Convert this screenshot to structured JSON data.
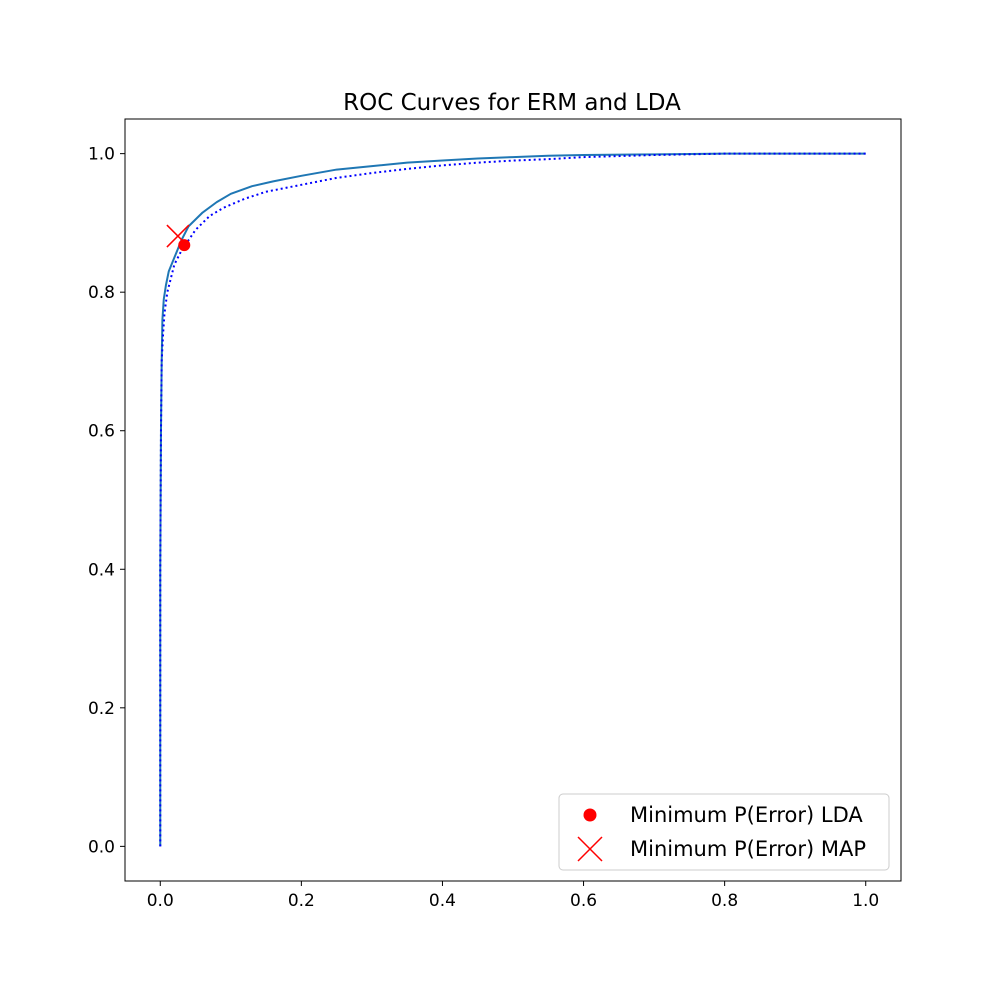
{
  "chart_data": {
    "type": "line",
    "title": "ROC Curves for ERM and LDA",
    "xlabel": "",
    "ylabel": "",
    "xlim": [
      -0.05,
      1.05
    ],
    "ylim": [
      -0.05,
      1.05
    ],
    "xticks": [
      0.0,
      0.2,
      0.4,
      0.6,
      0.8,
      1.0
    ],
    "xtick_labels": [
      "0.0",
      "0.2",
      "0.4",
      "0.6",
      "0.8",
      "1.0"
    ],
    "yticks": [
      0.0,
      0.2,
      0.4,
      0.6,
      0.8,
      1.0
    ],
    "ytick_labels": [
      "0.0",
      "0.2",
      "0.4",
      "0.6",
      "0.8",
      "1.0"
    ],
    "grid": false,
    "legend_position": "lower-right",
    "series": [
      {
        "style": "solid",
        "color": "#1f77b4",
        "x": [
          0.0,
          0.0,
          0.001,
          0.002,
          0.003,
          0.005,
          0.008,
          0.012,
          0.02,
          0.03,
          0.04,
          0.06,
          0.08,
          0.1,
          0.13,
          0.16,
          0.2,
          0.25,
          0.3,
          0.35,
          0.4,
          0.45,
          0.5,
          0.55,
          0.6,
          0.7,
          0.8,
          0.9,
          1.0
        ],
        "y": [
          0.0,
          0.4,
          0.6,
          0.7,
          0.76,
          0.79,
          0.81,
          0.83,
          0.85,
          0.875,
          0.895,
          0.915,
          0.93,
          0.942,
          0.953,
          0.96,
          0.968,
          0.977,
          0.982,
          0.987,
          0.99,
          0.993,
          0.995,
          0.997,
          0.998,
          0.999,
          1.0,
          1.0,
          1.0
        ]
      },
      {
        "style": "dotted",
        "color": "#0000ff",
        "x": [
          0.0,
          0.0,
          0.001,
          0.002,
          0.004,
          0.006,
          0.01,
          0.015,
          0.02,
          0.03,
          0.04,
          0.05,
          0.07,
          0.09,
          0.12,
          0.15,
          0.2,
          0.25,
          0.3,
          0.35,
          0.4,
          0.45,
          0.5,
          0.55,
          0.6,
          0.7,
          0.8,
          0.9,
          1.0
        ],
        "y": [
          0.0,
          0.4,
          0.6,
          0.7,
          0.74,
          0.77,
          0.8,
          0.82,
          0.84,
          0.86,
          0.875,
          0.89,
          0.91,
          0.922,
          0.935,
          0.945,
          0.955,
          0.965,
          0.972,
          0.978,
          0.983,
          0.987,
          0.99,
          0.992,
          0.995,
          0.998,
          1.0,
          1.0,
          1.0
        ]
      }
    ],
    "markers": [
      {
        "name": "Minimum P(Error) LDA",
        "shape": "circle",
        "color": "#ff0000",
        "x": 0.034,
        "y": 0.868
      },
      {
        "name": "Minimum P(Error) MAP",
        "shape": "x",
        "color": "#ff0000",
        "x": 0.025,
        "y": 0.881
      }
    ]
  }
}
